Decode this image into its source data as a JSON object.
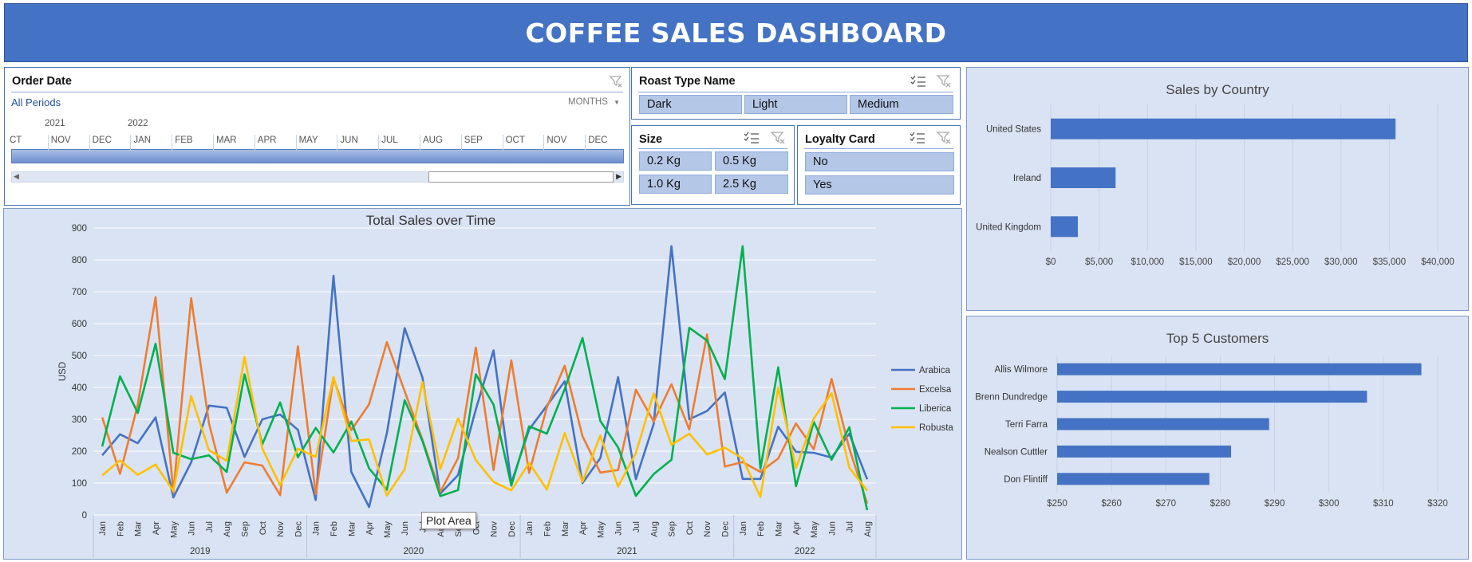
{
  "dashboard": {
    "title": "COFFEE SALES DASHBOARD"
  },
  "order_date": {
    "title": "Order Date",
    "period": "All Periods",
    "level": "MONTHS",
    "years": [
      "2021",
      "2022"
    ],
    "months": [
      "CT",
      "NOV",
      "DEC",
      "JAN",
      "FEB",
      "MAR",
      "APR",
      "MAY",
      "JUN",
      "JUL",
      "AUG",
      "SEP",
      "OCT",
      "NOV",
      "DEC"
    ]
  },
  "roast_type": {
    "title": "Roast Type Name",
    "options": [
      "Dark",
      "Light",
      "Medium"
    ]
  },
  "size": {
    "title": "Size",
    "options": [
      "0.2 Kg",
      "0.5 Kg",
      "1.0 Kg",
      "2.5 Kg"
    ]
  },
  "loyalty": {
    "title": "Loyalty Card",
    "options": [
      "No",
      "Yes"
    ]
  },
  "tooltip": "Plot Area",
  "colors": {
    "Arabica": "#4472c4",
    "Excelsa": "#ed7d31",
    "Liberica": "#00b050",
    "Robusta": "#ffc000",
    "bar": "#4472c4",
    "panel": "#dae3f3",
    "banner": "#4472c4"
  },
  "chart_data": [
    {
      "type": "line",
      "title": "Total Sales over Time",
      "ylabel": "USD",
      "ylim": [
        0,
        900
      ],
      "yticks": [
        0,
        100,
        200,
        300,
        400,
        500,
        600,
        700,
        800,
        900
      ],
      "x": [
        "Jan",
        "Feb",
        "Mar",
        "Apr",
        "May",
        "Jun",
        "Jul",
        "Aug",
        "Sep",
        "Oct",
        "Nov",
        "Dec",
        "Jan",
        "Feb",
        "Mar",
        "Apr",
        "May",
        "Jun",
        "Jul",
        "Aug",
        "Sep",
        "Oct",
        "Nov",
        "Dec",
        "Jan",
        "Feb",
        "Mar",
        "Apr",
        "May",
        "Jun",
        "Jul",
        "Aug",
        "Sep",
        "Oct",
        "Nov",
        "Dec",
        "Jan",
        "Feb",
        "Mar",
        "Apr",
        "May",
        "Jun",
        "Jul",
        "Aug"
      ],
      "groups": [
        {
          "label": "2019",
          "start": 0,
          "count": 12
        },
        {
          "label": "2020",
          "start": 12,
          "count": 12
        },
        {
          "label": "2021",
          "start": 24,
          "count": 12
        },
        {
          "label": "2022",
          "start": 36,
          "count": 8
        }
      ],
      "legend": "right",
      "grid": true,
      "series": [
        {
          "name": "Arabica",
          "values": [
            187,
            253,
            225,
            306,
            55,
            165,
            343,
            336,
            182,
            300,
            315,
            267,
            47,
            750,
            135,
            25,
            257,
            586,
            431,
            67,
            125,
            331,
            516,
            100,
            268,
            343,
            419,
            100,
            178,
            432,
            112,
            285,
            843,
            300,
            326,
            384,
            113,
            113,
            277,
            198,
            195,
            180,
            255,
            112
          ]
        },
        {
          "name": "Excelsa",
          "values": [
            306,
            129,
            346,
            683,
            70,
            680,
            288,
            70,
            165,
            155,
            62,
            529,
            65,
            429,
            266,
            347,
            542,
            388,
            236,
            72,
            178,
            525,
            141,
            485,
            132,
            338,
            468,
            247,
            133,
            141,
            393,
            293,
            410,
            268,
            566,
            152,
            166,
            135,
            177,
            287,
            206,
            427,
            208,
            36
          ]
        },
        {
          "name": "Liberica",
          "values": [
            215,
            435,
            320,
            537,
            195,
            175,
            187,
            135,
            441,
            222,
            353,
            181,
            273,
            196,
            293,
            146,
            79,
            360,
            232,
            59,
            78,
            441,
            346,
            92,
            278,
            255,
            395,
            555,
            295,
            212,
            60,
            128,
            173,
            587,
            547,
            426,
            843,
            145,
            463,
            90,
            292,
            173,
            275,
            15
          ]
        },
        {
          "name": "Robusta",
          "values": [
            124,
            171,
            126,
            158,
            75,
            373,
            203,
            170,
            496,
            208,
            93,
            208,
            182,
            433,
            232,
            237,
            61,
            143,
            417,
            143,
            303,
            172,
            104,
            77,
            163,
            80,
            257,
            104,
            249,
            89,
            194,
            381,
            220,
            255,
            190,
            211,
            177,
            56,
            400,
            147,
            303,
            382,
            148,
            76
          ]
        }
      ]
    },
    {
      "type": "bar",
      "title": "Sales by Country",
      "categories": [
        "United States",
        "Ireland",
        "United Kingdom"
      ],
      "values": [
        35640,
        6700,
        2800
      ],
      "xlim": [
        0,
        40000
      ],
      "xticks": [
        "$0",
        "$5,000",
        "$10,000",
        "$15,000",
        "$20,000",
        "$25,000",
        "$30,000",
        "$35,000",
        "$40,000"
      ]
    },
    {
      "type": "bar",
      "title": "Top 5 Customers",
      "categories": [
        "Allis Wilmore",
        "Brenn Dundredge",
        "Terri Farra",
        "Nealson Cuttler",
        "Don Flintiff"
      ],
      "values": [
        317,
        307,
        289,
        282,
        278
      ],
      "xlim": [
        250,
        320
      ],
      "xticks": [
        "$250",
        "$260",
        "$270",
        "$280",
        "$290",
        "$300",
        "$310",
        "$320"
      ]
    }
  ]
}
